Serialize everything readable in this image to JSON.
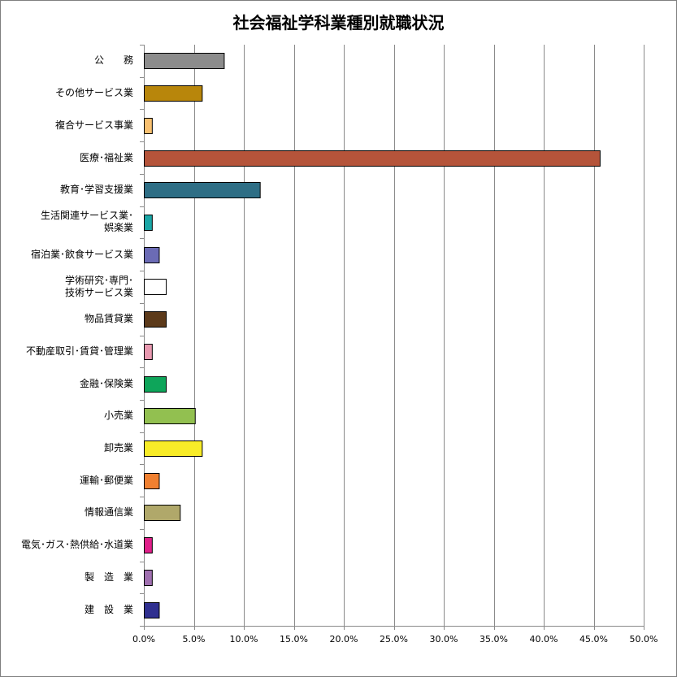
{
  "chart_data": {
    "type": "bar",
    "orientation": "horizontal",
    "title": "社会福祉学科業種別就職状況",
    "xlabel": "",
    "ylabel": "",
    "xlim": [
      0,
      0.5
    ],
    "x_ticks": [
      "0.0%",
      "5.0%",
      "10.0%",
      "15.0%",
      "20.0%",
      "25.0%",
      "30.0%",
      "35.0%",
      "40.0%",
      "45.0%",
      "50.0%"
    ],
    "grid": "vertical",
    "legend": "none",
    "categories": [
      "公　　務",
      "その他サービス業",
      "複合サービス事業",
      "医療･福祉業",
      "教育･学習支援業",
      "生活関連サービス業･\n娯楽業",
      "宿泊業･飲食サービス業",
      "学術研究･専門･\n技術サービス業",
      "物品賃貸業",
      "不動産取引･賃貸･管理業",
      "金融･保険業",
      "小売業",
      "卸売業",
      "運輸･郵便業",
      "情報通信業",
      "電気･ガス･熱供給･水道業",
      "製　造　業",
      "建　設　業"
    ],
    "values": [
      0.08,
      0.058,
      0.008,
      0.456,
      0.116,
      0.008,
      0.015,
      0.022,
      0.022,
      0.008,
      0.022,
      0.051,
      0.058,
      0.015,
      0.036,
      0.008,
      0.008,
      0.015
    ],
    "colors": [
      "#8c8c8c",
      "#b8860b",
      "#f8c070",
      "#b5543a",
      "#2e6e85",
      "#1aa6a6",
      "#6b6bb5",
      "#ffffff",
      "#5c3a1a",
      "#e899b0",
      "#0ea55a",
      "#92c050",
      "#f8ec28",
      "#f08030",
      "#b0a86a",
      "#e0208a",
      "#a070b0",
      "#303090"
    ]
  }
}
